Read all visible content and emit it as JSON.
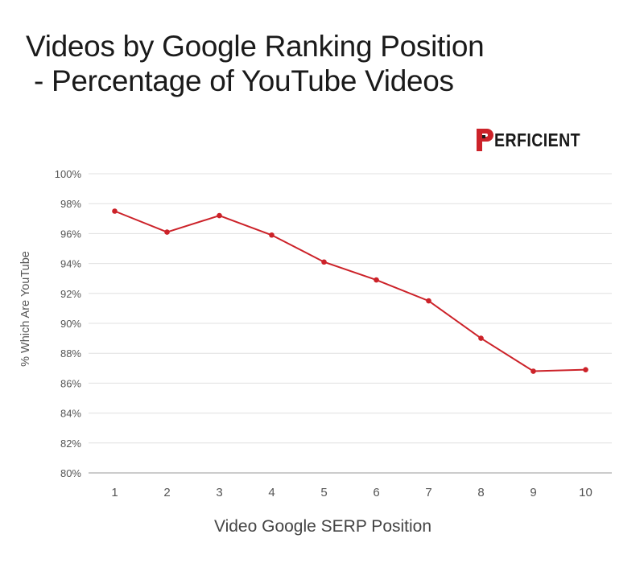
{
  "title": {
    "line1": "Videos by Google Ranking Position",
    "line2": "- Percentage of YouTube Videos"
  },
  "logo": {
    "text": "ERFICIENT",
    "brand": "PERFICIENT",
    "mark_color": "#cc2229"
  },
  "colors": {
    "line": "#cc2229",
    "grid": "#e0e0e0",
    "axis": "#999999"
  },
  "chart_data": {
    "type": "line",
    "title": "Videos by Google Ranking Position - Percentage of YouTube Videos",
    "xlabel": "Video Google SERP Position",
    "ylabel": "% Which Are YouTube",
    "categories": [
      "1",
      "2",
      "3",
      "4",
      "5",
      "6",
      "7",
      "8",
      "9",
      "10"
    ],
    "series": [
      {
        "name": "% Which Are YouTube",
        "values": [
          97.5,
          96.1,
          97.2,
          95.9,
          94.1,
          92.9,
          91.5,
          89.0,
          86.8,
          86.9
        ]
      }
    ],
    "ylim": [
      80,
      100
    ],
    "yticks": [
      "100%",
      "98%",
      "96%",
      "94%",
      "92%",
      "90%",
      "88%",
      "86%",
      "84%",
      "82%",
      "80%"
    ],
    "grid": true,
    "legend": "none"
  }
}
